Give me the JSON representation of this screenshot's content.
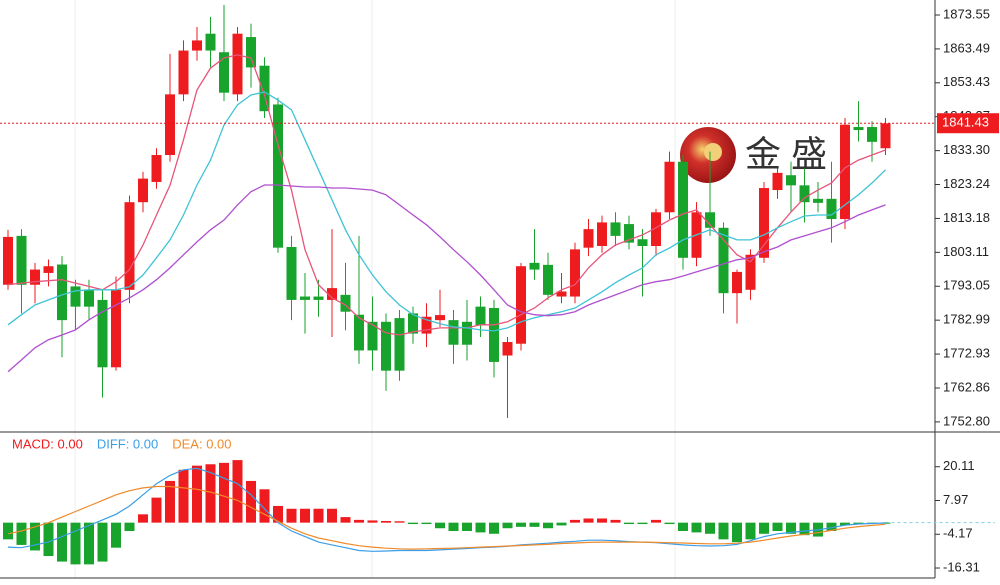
{
  "chart_data": [
    {
      "type": "candlestick",
      "watermark": "金 盛",
      "open": [
        1793.5,
        1808,
        1793.5,
        1797,
        1799.5,
        1793,
        1792,
        1789,
        1769,
        1792,
        1818,
        1824,
        1832,
        1850,
        1863,
        1868,
        1862.5,
        1850,
        1867,
        1858.5,
        1847,
        1804.7,
        1790,
        1790,
        1789,
        1790.5,
        1784.6,
        1782.5,
        1782.5,
        1783.6,
        1785,
        1779,
        1783,
        1783,
        1782.5,
        1787,
        1786.6,
        1772.5,
        1776,
        1800,
        1799.4,
        1790,
        1790,
        1804.5,
        1805,
        1812,
        1811.5,
        1807,
        1805,
        1815,
        1830,
        1801.5,
        1815,
        1810.4,
        1791,
        1792,
        1801.5,
        1821.6,
        1826,
        1823,
        1819,
        1819,
        1813,
        1840.3,
        1840.3,
        1834
      ],
      "high": [
        1809.8,
        1810,
        1800,
        1801,
        1802,
        1795,
        1795,
        1792,
        1796,
        1820,
        1827,
        1834,
        1862,
        1866,
        1870,
        1873,
        1876.5,
        1870,
        1871,
        1861,
        1849,
        1808,
        1797,
        1795,
        1810,
        1800,
        1808,
        1790,
        1785,
        1786,
        1787,
        1788,
        1792,
        1786,
        1789,
        1790,
        1789,
        1778,
        1800,
        1810,
        1803,
        1797,
        1806,
        1813,
        1814,
        1815,
        1814,
        1810,
        1816,
        1833,
        1832,
        1818,
        1833,
        1812,
        1798,
        1804,
        1824,
        1828,
        1830,
        1828,
        1824,
        1830,
        1843,
        1848,
        1842,
        1843
      ],
      "low": [
        1792,
        1785,
        1788,
        1793,
        1772,
        1780,
        1783,
        1760,
        1768,
        1788,
        1815,
        1822,
        1830,
        1848,
        1860,
        1858,
        1848,
        1848,
        1852,
        1843,
        1803,
        1783,
        1779,
        1784,
        1778,
        1780,
        1770,
        1768,
        1762,
        1765,
        1776,
        1775,
        1781,
        1770,
        1771,
        1778,
        1766,
        1754,
        1774,
        1795,
        1789,
        1788,
        1788,
        1802,
        1803,
        1805,
        1804,
        1790,
        1802,
        1813,
        1798,
        1799,
        1808,
        1785,
        1782,
        1789,
        1800,
        1819,
        1815,
        1812,
        1815,
        1806,
        1810,
        1836,
        1830,
        1832
      ],
      "close": [
        1807.7,
        1793.5,
        1798,
        1799,
        1783,
        1787,
        1787,
        1769,
        1792,
        1818,
        1825,
        1832,
        1850,
        1863,
        1866,
        1863,
        1850.5,
        1868,
        1858,
        1845,
        1804.5,
        1789,
        1789,
        1789,
        1792.5,
        1785.5,
        1774,
        1774,
        1768,
        1768,
        1779,
        1784,
        1784.5,
        1775.7,
        1775.7,
        1781.5,
        1770.6,
        1776.5,
        1799,
        1798,
        1790.5,
        1791.5,
        1804,
        1810,
        1812,
        1808,
        1806,
        1805,
        1815,
        1830,
        1801.5,
        1815,
        1810.4,
        1791,
        1797.3,
        1802.4,
        1822.2,
        1826.7,
        1823,
        1818,
        1817.8,
        1813,
        1841,
        1839.4,
        1835.9,
        1841.4
      ],
      "up_color": "#ee1c1f",
      "down_color": "#17a32c",
      "series": [
        {
          "color": "#e8547a",
          "values": [
            1793.5,
            1794,
            1794.4,
            1794.7,
            1795,
            1794,
            1793,
            1792,
            1794.4,
            1798,
            1805.3,
            1814.2,
            1823,
            1836.5,
            1851.3,
            1857.8,
            1860.8,
            1861.7,
            1860.8,
            1849.8,
            1835,
            1821.6,
            1803.9,
            1793.5,
            1789.6,
            1787.5,
            1783.7,
            1781.6,
            1779.2,
            1778.6,
            1779.5,
            1780.1,
            1780.7,
            1780.7,
            1780.7,
            1781.6,
            1781.6,
            1782.5,
            1784.6,
            1786.6,
            1789.6,
            1792,
            1793.5,
            1798.5,
            1802.4,
            1805.3,
            1806.8,
            1808.3,
            1810.4,
            1812.7,
            1814.5,
            1815.7,
            1811.3,
            1806.8,
            1802.4,
            1800.3,
            1805.3,
            1810.4,
            1815.1,
            1819.3,
            1821.6,
            1823.7,
            1828.2,
            1830.5,
            1832,
            1833.5
          ]
        },
        {
          "color": "#3fc3d6",
          "values": [
            1781.6,
            1784.6,
            1787.5,
            1789,
            1790.5,
            1791.7,
            1792,
            1792,
            1792,
            1792.9,
            1796.4,
            1801.5,
            1806.8,
            1814.2,
            1823.1,
            1830.5,
            1840.9,
            1846.9,
            1849.8,
            1850.7,
            1848.3,
            1845.4,
            1836.5,
            1827.6,
            1818.7,
            1809.8,
            1802.4,
            1796.4,
            1791.4,
            1787.5,
            1784.6,
            1783.1,
            1781.9,
            1781,
            1780.7,
            1780.1,
            1779.8,
            1780.7,
            1782.5,
            1783.7,
            1784.6,
            1785.5,
            1786.6,
            1789,
            1791.4,
            1794.1,
            1796.4,
            1798.5,
            1802.4,
            1804.4,
            1806.8,
            1808.3,
            1809.8,
            1808.3,
            1806.8,
            1806.8,
            1808.3,
            1810.4,
            1812.2,
            1813.9,
            1814.2,
            1814.2,
            1817.2,
            1820.2,
            1823.7,
            1827.6
          ]
        },
        {
          "color": "#b04fcf",
          "values": [
            1767.7,
            1771.2,
            1774.8,
            1777.2,
            1778.6,
            1780.1,
            1783.1,
            1785.5,
            1787.5,
            1789.6,
            1792,
            1795,
            1798.5,
            1802.4,
            1806.2,
            1809.8,
            1812.7,
            1817.2,
            1821.1,
            1823.1,
            1823.1,
            1822.8,
            1822.5,
            1822.5,
            1822.2,
            1822.2,
            1821.9,
            1821.6,
            1820.2,
            1817.2,
            1814.2,
            1811.3,
            1807.7,
            1803.9,
            1800.3,
            1796.4,
            1792,
            1787.5,
            1785.5,
            1784.6,
            1784.3,
            1784.6,
            1785.5,
            1787.5,
            1789,
            1790.5,
            1792,
            1793.5,
            1794.4,
            1795,
            1796.1,
            1797.3,
            1798.5,
            1799.7,
            1800.9,
            1801.5,
            1803.3,
            1804.7,
            1806.8,
            1808,
            1809.2,
            1810.4,
            1812.2,
            1814.2,
            1815.7,
            1817.2
          ]
        }
      ],
      "last_price": 1841.43,
      "ylim": [
        1749.8,
        1878.0
      ],
      "yticks": [
        1873.55,
        1863.49,
        1853.43,
        1843.37,
        {
          "value": 1833.3,
          "label": "1833.30"
        },
        1823.24,
        1813.18,
        1803.11,
        1793.05,
        1782.99,
        1772.93,
        1762.86,
        {
          "value": 1752.8,
          "label": "1752.80"
        }
      ]
    },
    {
      "type": "macd",
      "series": [
        {
          "name": "MACD: 0.00",
          "color": "#ee1c1f",
          "down_color": "#17a32c",
          "values": [
            -6,
            -8,
            -10,
            -12,
            -14,
            -15,
            -15,
            -14,
            -9,
            -3,
            3,
            9,
            15,
            19,
            20.5,
            21,
            21.5,
            22.5,
            15,
            12,
            6,
            5,
            5,
            5,
            5,
            2,
            1,
            0.8,
            0.6,
            0.5,
            -0.5,
            -0.5,
            -2,
            -3,
            -3,
            -3.5,
            -4,
            -2,
            -1.5,
            -1.5,
            -2,
            -1,
            1,
            1.5,
            1.5,
            1,
            -0.5,
            -0.5,
            1,
            -0.5,
            -3,
            -3.5,
            -4,
            -6,
            -7,
            -6,
            -4,
            -3,
            -4,
            -4.5,
            -5,
            -3,
            -1,
            -0.5,
            -0.3,
            -0.2
          ]
        },
        {
          "name": "DIFF: 0.00",
          "color": "#3a9ee8",
          "values": [
            -8.8,
            -9,
            -8,
            -7,
            -5,
            -3,
            -1,
            1,
            3,
            6,
            10,
            14,
            17,
            19,
            19.5,
            18,
            16,
            14,
            10,
            5,
            0,
            -3,
            -5,
            -7,
            -8,
            -9,
            -10,
            -10.3,
            -10.2,
            -10,
            -10,
            -10,
            -9.8,
            -9.5,
            -9.3,
            -9,
            -8.8,
            -8.5,
            -8,
            -7.7,
            -7.4,
            -7,
            -6.7,
            -6.3,
            -6.3,
            -6.5,
            -6.8,
            -7,
            -7.2,
            -7.6,
            -8,
            -8.3,
            -8.4,
            -8.3,
            -7.8,
            -6.5,
            -5,
            -4,
            -3.5,
            -3,
            -2.6,
            -1.8,
            -0.9,
            -0.5,
            -0.3,
            -0.1
          ]
        },
        {
          "name": "DEA: 0.00",
          "color": "#f08a2a",
          "values": [
            -4,
            -3,
            -1.5,
            0,
            2,
            4,
            6,
            8,
            10,
            11.5,
            12.5,
            13,
            13,
            12.5,
            12,
            11,
            9.5,
            8,
            5.5,
            3,
            0.5,
            -2,
            -4,
            -5.5,
            -6.5,
            -7.5,
            -8.3,
            -8.8,
            -9.2,
            -9.4,
            -9.5,
            -9.4,
            -9.3,
            -9.2,
            -9,
            -8.8,
            -8.6,
            -8.4,
            -8.2,
            -8,
            -7.8,
            -7.5,
            -7.3,
            -7.1,
            -7,
            -7,
            -7,
            -7,
            -7.1,
            -7.2,
            -7.3,
            -7.5,
            -7.6,
            -7.6,
            -7.4,
            -7,
            -6.3,
            -5.5,
            -4.8,
            -4.2,
            -3.6,
            -2.8,
            -2,
            -1.4,
            -1,
            -0.6
          ]
        }
      ],
      "ylim": [
        -19.9,
        32.6
      ],
      "yticks": [
        20.11,
        7.97,
        -4.17,
        -16.31
      ]
    }
  ]
}
